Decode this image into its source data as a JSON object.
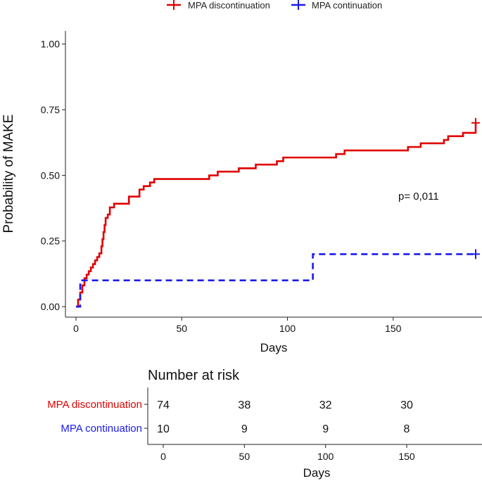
{
  "chart_data": [
    {
      "type": "line",
      "subtype": "kaplan-meier step",
      "xlabel": "Days",
      "ylabel": "Probability of MAKE",
      "xlim": [
        -5,
        192
      ],
      "ylim": [
        -0.04,
        1.05
      ],
      "x_ticks": [
        0,
        50,
        100,
        150
      ],
      "x_tick_labels": [
        "0",
        "50",
        "100",
        "150"
      ],
      "y_ticks": [
        0,
        0.25,
        0.5,
        0.75,
        1.0
      ],
      "y_tick_labels": [
        "0.00",
        "0.25",
        "0.50",
        "0.75",
        "1.00"
      ],
      "legend_position": "top",
      "annotation": "p=  0,011",
      "annotation_position": {
        "x": 162,
        "y": 0.42
      },
      "series": [
        {
          "name": "MPA discontinuation",
          "color": "#e00000",
          "dash": "solid",
          "censor_marks": [
            {
              "x": 189,
              "y": 0.7
            }
          ],
          "points": [
            [
              0,
              0.0
            ],
            [
              1,
              0.0
            ],
            [
              1,
              0.027
            ],
            [
              2,
              0.027
            ],
            [
              2,
              0.054
            ],
            [
              3,
              0.054
            ],
            [
              3,
              0.081
            ],
            [
              4,
              0.081
            ],
            [
              4,
              0.108
            ],
            [
              5,
              0.108
            ],
            [
              5,
              0.122
            ],
            [
              6,
              0.122
            ],
            [
              6,
              0.135
            ],
            [
              7,
              0.135
            ],
            [
              7,
              0.149
            ],
            [
              8,
              0.149
            ],
            [
              8,
              0.162
            ],
            [
              9,
              0.162
            ],
            [
              9,
              0.176
            ],
            [
              10,
              0.176
            ],
            [
              10,
              0.189
            ],
            [
              11,
              0.189
            ],
            [
              11,
              0.203
            ],
            [
              12,
              0.203
            ],
            [
              12,
              0.23
            ],
            [
              12.5,
              0.23
            ],
            [
              12.5,
              0.257
            ],
            [
              13,
              0.257
            ],
            [
              13,
              0.284
            ],
            [
              13.5,
              0.284
            ],
            [
              13.5,
              0.311
            ],
            [
              14,
              0.311
            ],
            [
              14,
              0.338
            ],
            [
              15,
              0.338
            ],
            [
              15,
              0.351
            ],
            [
              16,
              0.351
            ],
            [
              16,
              0.378
            ],
            [
              18,
              0.378
            ],
            [
              18,
              0.392
            ],
            [
              25,
              0.392
            ],
            [
              25,
              0.419
            ],
            [
              30,
              0.419
            ],
            [
              30,
              0.446
            ],
            [
              32,
              0.446
            ],
            [
              32,
              0.459
            ],
            [
              35,
              0.459
            ],
            [
              35,
              0.473
            ],
            [
              37,
              0.473
            ],
            [
              37,
              0.486
            ],
            [
              63,
              0.486
            ],
            [
              63,
              0.5
            ],
            [
              67,
              0.5
            ],
            [
              67,
              0.514
            ],
            [
              77,
              0.514
            ],
            [
              77,
              0.527
            ],
            [
              85,
              0.527
            ],
            [
              85,
              0.541
            ],
            [
              95,
              0.541
            ],
            [
              95,
              0.554
            ],
            [
              98,
              0.554
            ],
            [
              98,
              0.568
            ],
            [
              123,
              0.568
            ],
            [
              123,
              0.581
            ],
            [
              127,
              0.581
            ],
            [
              127,
              0.595
            ],
            [
              157,
              0.595
            ],
            [
              157,
              0.608
            ],
            [
              163,
              0.608
            ],
            [
              163,
              0.622
            ],
            [
              174,
              0.622
            ],
            [
              174,
              0.635
            ],
            [
              176,
              0.635
            ],
            [
              176,
              0.649
            ],
            [
              183,
              0.649
            ],
            [
              183,
              0.662
            ],
            [
              189,
              0.662
            ],
            [
              189,
              0.7
            ]
          ]
        },
        {
          "name": "MPA continuation",
          "color": "#1a1aee",
          "dash": "dashed",
          "censor_marks": [
            {
              "x": 189,
              "y": 0.2
            }
          ],
          "points": [
            [
              0,
              0.0
            ],
            [
              2,
              0.0
            ],
            [
              2,
              0.1
            ],
            [
              112,
              0.1
            ],
            [
              112,
              0.2
            ],
            [
              189,
              0.2
            ]
          ]
        }
      ]
    },
    {
      "type": "table",
      "title": "Number at risk",
      "xlabel": "Days",
      "x_ticks": [
        0,
        50,
        100,
        150
      ],
      "x_tick_labels": [
        "0",
        "50",
        "100",
        "150"
      ],
      "rows": [
        {
          "label": "MPA discontinuation",
          "color": "#e00000",
          "values": [
            "74",
            "38",
            "32",
            "30"
          ]
        },
        {
          "label": "MPA continuation",
          "color": "#1a1aee",
          "values": [
            "10",
            "9",
            "9",
            "8"
          ]
        }
      ]
    }
  ]
}
